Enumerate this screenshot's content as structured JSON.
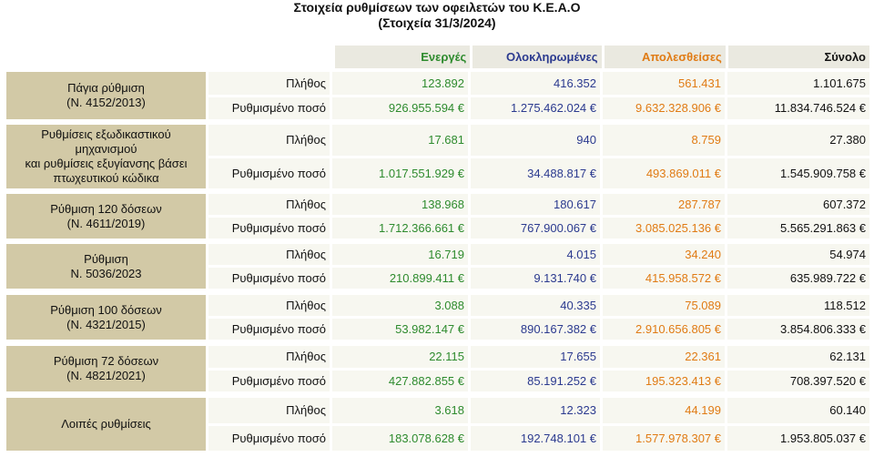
{
  "title": {
    "line1": "Στοιχεία ρυθμίσεων των οφειλετών του Κ.Ε.Α.Ο",
    "line2": "(Στοιχεία 31/3/2024)"
  },
  "header": {
    "col1": "Ενεργές",
    "col2": "Ολοκληρωμένες",
    "col3": "Απολεσθείσες",
    "col4": "Σύνολο"
  },
  "groups": [
    {
      "label": "Πάγια ρύθμιση\n(Ν. 4152/2013)",
      "rows": [
        {
          "label": "Πλήθος",
          "active": "123.892",
          "completed": "416.352",
          "lost": "561.431",
          "total": "1.101.675"
        },
        {
          "label": "Ρυθμισμένο ποσό",
          "active": "926.955.594 €",
          "completed": "1.275.462.024 €",
          "lost": "9.632.328.906 €",
          "total": "11.834.746.524 €"
        }
      ]
    },
    {
      "label": "Ρυθμίσεις εξωδικαστικού\nμηχανισμού\nκαι ρυθμίσεις εξυγίανσης βάσει\nπτωχευτικού κώδικα",
      "rows": [
        {
          "label": "Πλήθος",
          "active": "17.681",
          "completed": "940",
          "lost": "8.759",
          "total": "27.380"
        },
        {
          "label": "Ρυθμισμένο ποσό",
          "active": "1.017.551.929 €",
          "completed": "34.488.817 €",
          "lost": "493.869.011 €",
          "total": "1.545.909.758 €"
        }
      ]
    },
    {
      "label": "Ρύθμιση 120 δόσεων\n(Ν. 4611/2019)",
      "rows": [
        {
          "label": "Πλήθος",
          "active": "138.968",
          "completed": "180.617",
          "lost": "287.787",
          "total": "607.372"
        },
        {
          "label": "Ρυθμισμένο ποσό",
          "active": "1.712.366.661 €",
          "completed": "767.900.067 €",
          "lost": "3.085.025.136 €",
          "total": "5.565.291.863 €"
        }
      ]
    },
    {
      "label": "Ρύθμιση\nΝ. 5036/2023",
      "rows": [
        {
          "label": "Πλήθος",
          "active": "16.719",
          "completed": "4.015",
          "lost": "34.240",
          "total": "54.974"
        },
        {
          "label": "Ρυθμισμένο ποσό",
          "active": "210.899.411 €",
          "completed": "9.131.740 €",
          "lost": "415.958.572 €",
          "total": "635.989.722 €"
        }
      ]
    },
    {
      "label": "Ρύθμιση 100 δόσεων\n(Ν. 4321/2015)",
      "rows": [
        {
          "label": "Πλήθος",
          "active": "3.088",
          "completed": "40.335",
          "lost": "75.089",
          "total": "118.512"
        },
        {
          "label": "Ρυθμισμένο ποσό",
          "active": "53.982.147 €",
          "completed": "890.167.382 €",
          "lost": "2.910.656.805 €",
          "total": "3.854.806.333 €"
        }
      ]
    },
    {
      "label": "Ρύθμιση 72 δόσεων\n(Ν. 4821/2021)",
      "rows": [
        {
          "label": "Πλήθος",
          "active": "22.115",
          "completed": "17.655",
          "lost": "22.361",
          "total": "62.131"
        },
        {
          "label": "Ρυθμισμένο ποσό",
          "active": "427.882.855 €",
          "completed": "85.191.252 €",
          "lost": "195.323.413 €",
          "total": "708.397.520 €"
        }
      ]
    },
    {
      "label": "Λοιπές ρυθμίσεις",
      "rows": [
        {
          "label": "Πλήθος",
          "active": "3.618",
          "completed": "12.323",
          "lost": "44.199",
          "total": "60.140"
        },
        {
          "label": "Ρυθμισμένο ποσό",
          "active": "183.078.628 €",
          "completed": "192.748.101 €",
          "lost": "1.577.978.307 €",
          "total": "1.953.805.037 €"
        }
      ]
    }
  ],
  "colors": {
    "active": "#2e8b2e",
    "completed": "#2b3a8f",
    "lost": "#e07b14",
    "label_bg": "#d2c9a6",
    "header_bg": "#eae9e0",
    "cell_bg": "#f7f7f0"
  }
}
